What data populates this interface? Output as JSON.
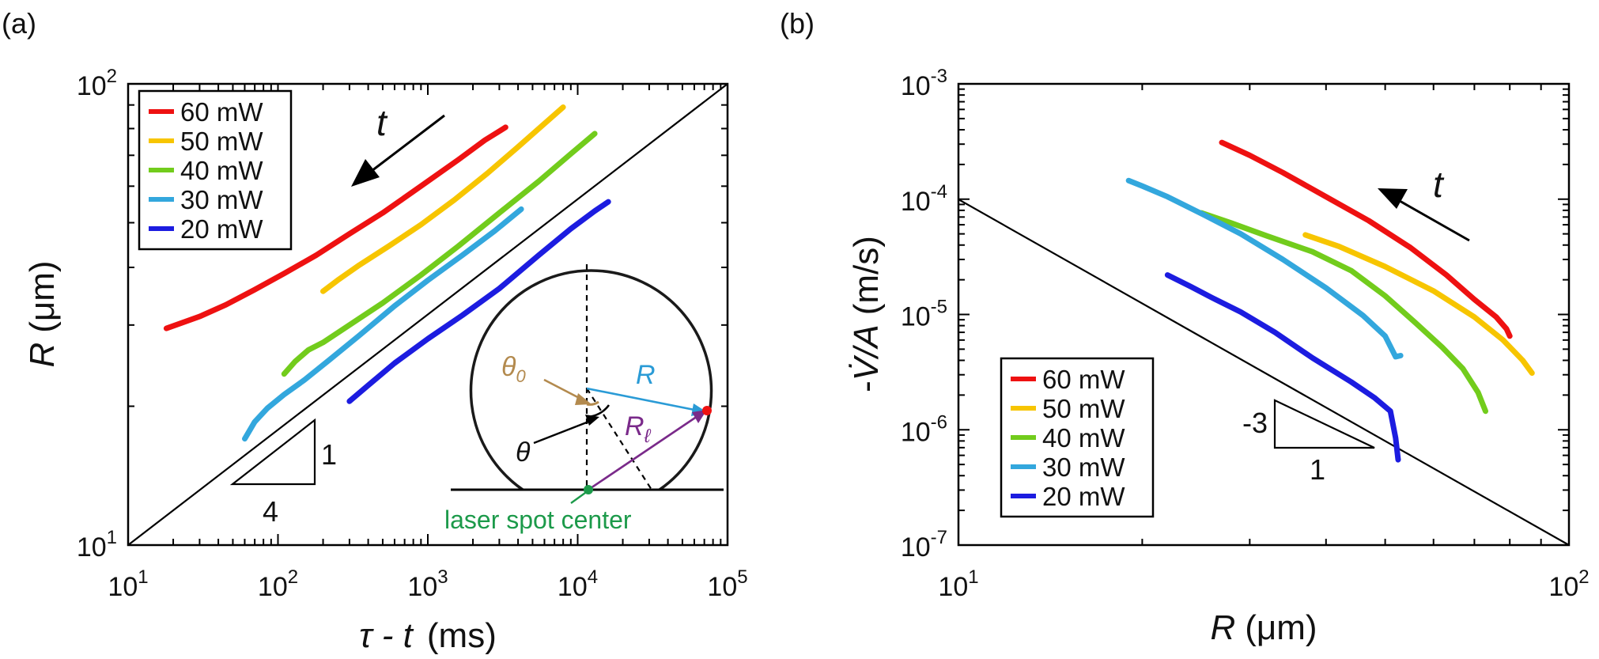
{
  "chart_data": [
    {
      "panel_label": "(a)",
      "type": "line",
      "xscale": "log",
      "yscale": "log",
      "xlim": [
        10,
        100000
      ],
      "ylim": [
        10,
        100
      ],
      "xlabel_italic": "τ - t",
      "xlabel_unit": "(ms)",
      "ylabel_italic": "R",
      "ylabel_unit": "(μm)",
      "x_ticks": [
        {
          "value": 10,
          "base": "10",
          "exp": "1"
        },
        {
          "value": 100,
          "base": "10",
          "exp": "2"
        },
        {
          "value": 1000,
          "base": "10",
          "exp": "3"
        },
        {
          "value": 10000,
          "base": "10",
          "exp": "4"
        },
        {
          "value": 100000,
          "base": "10",
          "exp": "5"
        }
      ],
      "y_ticks": [
        {
          "value": 10,
          "base": "10",
          "exp": "1"
        },
        {
          "value": 100,
          "base": "10",
          "exp": "2"
        }
      ],
      "legend": {
        "placement": "top-left"
      },
      "series": [
        {
          "name": "60 mW",
          "color": "#ee1111",
          "x": [
            18,
            22,
            30,
            45,
            70,
            110,
            180,
            300,
            500,
            900,
            1600,
            2400,
            3300
          ],
          "y": [
            29.5,
            30.2,
            31.3,
            33.2,
            35.8,
            38.8,
            42.5,
            47.3,
            52.5,
            60,
            68.5,
            75.5,
            80.5
          ]
        },
        {
          "name": "50 mW",
          "color": "#f7c500",
          "x": [
            200,
            250,
            350,
            550,
            900,
            1500,
            2500,
            4000,
            6000,
            8000
          ],
          "y": [
            35.5,
            37.5,
            40.5,
            44.5,
            49.5,
            56,
            64,
            73,
            82,
            89
          ]
        },
        {
          "name": "40 mW",
          "color": "#72cc1c",
          "x": [
            110,
            130,
            160,
            200,
            300,
            500,
            900,
            1600,
            3000,
            5500,
            9000,
            13000
          ],
          "y": [
            23.5,
            25,
            26.5,
            27.5,
            30,
            33.5,
            38.5,
            44.5,
            52.5,
            61.5,
            70.5,
            78
          ]
        },
        {
          "name": "30 mW",
          "color": "#33a7dd",
          "x": [
            60,
            70,
            85,
            110,
            150,
            220,
            350,
            600,
            1000,
            1700,
            2800,
            4200
          ],
          "y": [
            17,
            18.5,
            19.8,
            21.2,
            22.8,
            25.2,
            28.5,
            33,
            37.5,
            42.5,
            48,
            53.5
          ]
        },
        {
          "name": "20 mW",
          "color": "#1c1ce0",
          "x": [
            300,
            400,
            600,
            1000,
            1700,
            3000,
            5500,
            9000,
            13000,
            16000
          ],
          "y": [
            20.5,
            22.2,
            24.8,
            28,
            31.5,
            36,
            42.5,
            48.5,
            53,
            55.5
          ]
        }
      ],
      "reference_line": {
        "x": [
          10,
          100000
        ],
        "y": [
          10,
          100
        ]
      },
      "slope_triangle": {
        "run_label": "4",
        "rise_label": "1"
      },
      "time_arrow_label": "t",
      "inset": {
        "labels": {
          "theta0": "θ",
          "theta0_sub": "0",
          "theta": "θ",
          "R": "R",
          "Rl": "R",
          "Rl_sub": "ℓ",
          "laser": "laser spot center"
        },
        "colors": {
          "theta0": "#b38a4e",
          "R": "#2a9bd6",
          "Rl": "#7a2a8a",
          "laser": "#1c9a4a",
          "contact_point": "#ee1111"
        }
      }
    },
    {
      "panel_label": "(b)",
      "type": "line",
      "xscale": "log",
      "yscale": "log",
      "xlim": [
        10,
        100
      ],
      "ylim": [
        1e-07,
        0.001
      ],
      "xlabel_italic": "R",
      "xlabel_unit": "(μm)",
      "ylabel_prefix": "-",
      "ylabel_italic": "V̇/A",
      "ylabel_unit": "(m/s)",
      "x_ticks": [
        {
          "value": 10,
          "base": "10",
          "exp": "1"
        },
        {
          "value": 100,
          "base": "10",
          "exp": "2"
        }
      ],
      "y_ticks": [
        {
          "value": 1e-07,
          "base": "10",
          "exp": "-7"
        },
        {
          "value": 1e-06,
          "base": "10",
          "exp": "-6"
        },
        {
          "value": 1e-05,
          "base": "10",
          "exp": "-5"
        },
        {
          "value": 0.0001,
          "base": "10",
          "exp": "-4"
        },
        {
          "value": 0.001,
          "base": "10",
          "exp": "-3"
        }
      ],
      "legend": {
        "placement": "bottom-left"
      },
      "series": [
        {
          "name": "60 mW",
          "color": "#ee1111",
          "x": [
            27,
            30,
            34,
            40,
            47,
            55,
            63,
            70,
            76,
            79,
            80
          ],
          "y": [
            0.00031,
            0.00024,
            0.00017,
            0.000105,
            6.5e-05,
            3.8e-05,
            2.2e-05,
            1.35e-05,
            9.5e-06,
            7.5e-06,
            6.5e-06
          ]
        },
        {
          "name": "50 mW",
          "color": "#f7c500",
          "x": [
            37,
            42,
            50,
            60,
            70,
            78,
            84,
            87
          ],
          "y": [
            4.9e-05,
            3.9e-05,
            2.6e-05,
            1.6e-05,
            9.5e-06,
            6e-06,
            4e-06,
            3.1e-06
          ]
        },
        {
          "name": "40 mW",
          "color": "#72cc1c",
          "x": [
            25,
            28,
            32,
            38,
            44,
            50,
            56,
            62,
            67,
            71,
            73
          ],
          "y": [
            7.6e-05,
            6.2e-05,
            4.8e-05,
            3.5e-05,
            2.4e-05,
            1.45e-05,
            8.5e-06,
            5.2e-06,
            3.4e-06,
            2.1e-06,
            1.45e-06
          ]
        },
        {
          "name": "30 mW",
          "color": "#33a7dd",
          "x": [
            19,
            20,
            22,
            25,
            29,
            34,
            40,
            46,
            50,
            52,
            53
          ],
          "y": [
            0.000145,
            0.00013,
            0.000105,
            7.5e-05,
            5e-05,
            3e-05,
            1.7e-05,
            9.8e-06,
            6.5e-06,
            4.3e-06,
            4.4e-06
          ]
        },
        {
          "name": "20 mW",
          "color": "#1c1ce0",
          "x": [
            22,
            24,
            26,
            29,
            33,
            38,
            44,
            48,
            51,
            52,
            52.5
          ],
          "y": [
            2.2e-05,
            1.75e-05,
            1.4e-05,
            1.05e-05,
            7e-06,
            4.2e-06,
            2.6e-06,
            1.9e-06,
            1.45e-06,
            8.5e-07,
            5.5e-07
          ]
        }
      ],
      "reference_line": {
        "x": [
          10,
          100
        ],
        "y": [
          0.0001,
          1e-07
        ]
      },
      "slope_triangle": {
        "run_label": "1",
        "rise_label": "-3"
      },
      "time_arrow_label": "t"
    }
  ]
}
